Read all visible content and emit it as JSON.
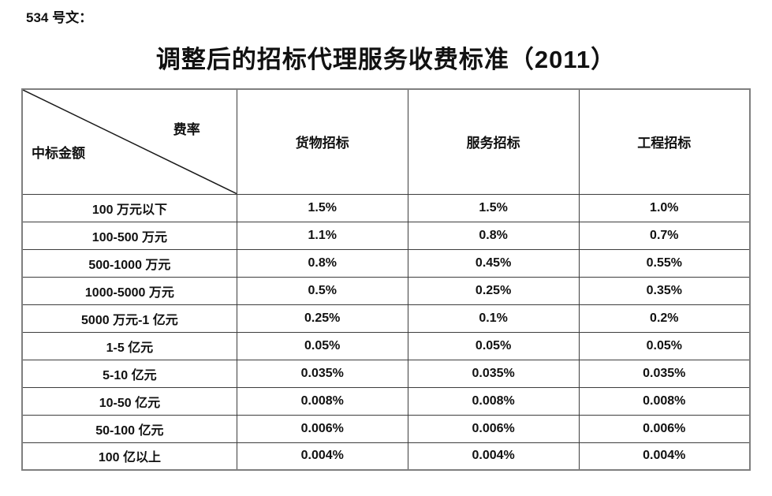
{
  "header": {
    "doc_label": "534 号文：",
    "title": "调整后的招标代理服务收费标准（2011）"
  },
  "table": {
    "corner": {
      "rate_label": "费率",
      "amount_label": "中标金额"
    },
    "columns": [
      "货物招标",
      "服务招标",
      "工程招标"
    ],
    "rows": [
      {
        "label": "100 万元以下",
        "values": [
          "1.5%",
          "1.5%",
          "1.0%"
        ]
      },
      {
        "label": "100-500 万元",
        "values": [
          "1.1%",
          "0.8%",
          "0.7%"
        ]
      },
      {
        "label": "500-1000 万元",
        "values": [
          "0.8%",
          "0.45%",
          "0.55%"
        ]
      },
      {
        "label": "1000-5000 万元",
        "values": [
          "0.5%",
          "0.25%",
          "0.35%"
        ]
      },
      {
        "label": "5000 万元-1 亿元",
        "values": [
          "0.25%",
          "0.1%",
          "0.2%"
        ]
      },
      {
        "label": "1-5 亿元",
        "values": [
          "0.05%",
          "0.05%",
          "0.05%"
        ]
      },
      {
        "label": "5-10 亿元",
        "values": [
          "0.035%",
          "0.035%",
          "0.035%"
        ]
      },
      {
        "label": "10-50 亿元",
        "values": [
          "0.008%",
          "0.008%",
          "0.008%"
        ]
      },
      {
        "label": "50-100 亿元",
        "values": [
          "0.006%",
          "0.006%",
          "0.006%"
        ]
      },
      {
        "label": "100 亿以上",
        "values": [
          "0.004%",
          "0.004%",
          "0.004%"
        ]
      }
    ]
  },
  "colors": {
    "text": "#111111",
    "outer_border": "#7f7f7f",
    "inner_border": "#3d3d3d",
    "background": "#ffffff"
  }
}
